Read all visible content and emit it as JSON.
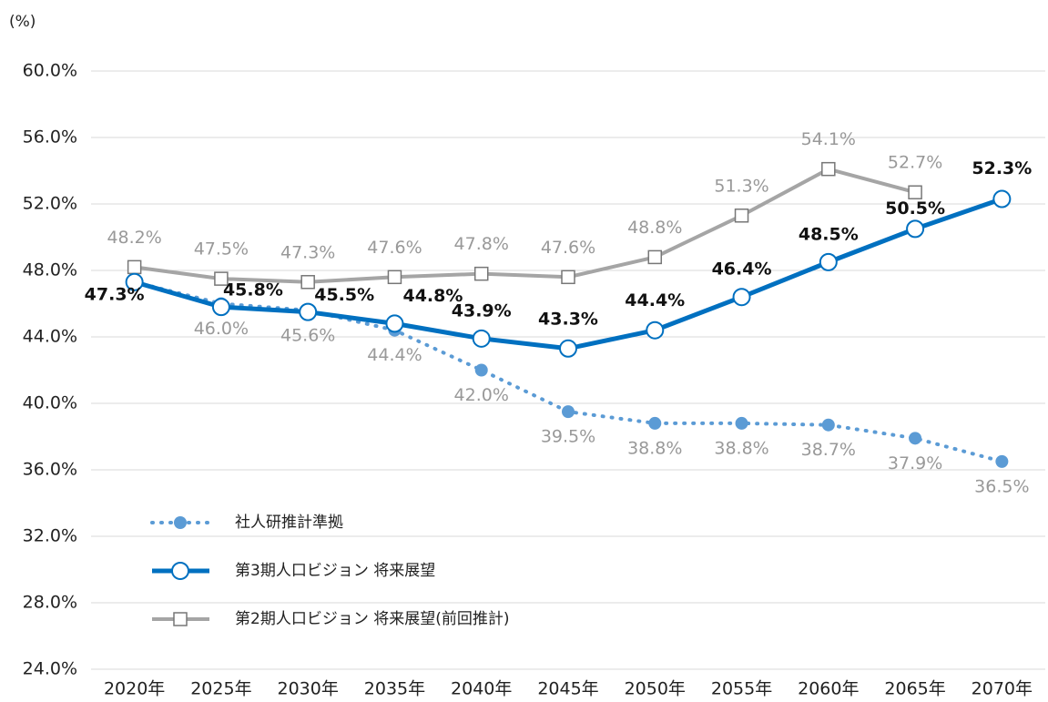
{
  "chart_data": {
    "type": "line",
    "y_axis_label": "(%)",
    "categories": [
      "2020年",
      "2025年",
      "2030年",
      "2035年",
      "2040年",
      "2045年",
      "2050年",
      "2055年",
      "2060年",
      "2065年",
      "2070年"
    ],
    "ylim": [
      24,
      60
    ],
    "yticks": [
      {
        "value": 24,
        "label": "24.0%"
      },
      {
        "value": 28,
        "label": "28.0%"
      },
      {
        "value": 32,
        "label": "32.0%"
      },
      {
        "value": 36,
        "label": "36.0%"
      },
      {
        "value": 40,
        "label": "40.0%"
      },
      {
        "value": 44,
        "label": "44.0%"
      },
      {
        "value": 48,
        "label": "48.0%"
      },
      {
        "value": 52,
        "label": "52.0%"
      },
      {
        "value": 56,
        "label": "56.0%"
      },
      {
        "value": 60,
        "label": "60.0%"
      }
    ],
    "grid": true,
    "series": [
      {
        "name": "社人研推計準拠",
        "color": "#5b9bd5",
        "line_style": "dotted",
        "marker": "dot",
        "values": [
          47.3,
          46.0,
          45.6,
          44.4,
          42.0,
          39.5,
          38.8,
          38.8,
          38.7,
          37.9,
          36.5
        ],
        "value_labels": [
          null,
          "46.0%",
          "45.6%",
          "44.4%",
          "42.0%",
          "39.5%",
          "38.8%",
          "38.8%",
          "38.7%",
          "37.9%",
          "36.5%"
        ]
      },
      {
        "name": "第3期人口ビジョン 将来展望",
        "color": "#0070c0",
        "line_style": "solid",
        "marker": "circle",
        "values": [
          47.3,
          45.8,
          45.5,
          44.8,
          43.9,
          43.3,
          44.4,
          46.4,
          48.5,
          50.5,
          52.3
        ],
        "value_labels": [
          "47.3%",
          "45.8%",
          "45.5%",
          "44.8%",
          "43.9%",
          "43.3%",
          "44.4%",
          "46.4%",
          "48.5%",
          "50.5%",
          "52.3%"
        ]
      },
      {
        "name": "第2期人口ビジョン 将来展望(前回推計)",
        "color": "#a5a5a5",
        "line_style": "solid",
        "marker": "square",
        "values": [
          48.2,
          47.5,
          47.3,
          47.6,
          47.8,
          47.6,
          48.8,
          51.3,
          54.1,
          52.7,
          null
        ],
        "value_labels": [
          "48.2%",
          "47.5%",
          "47.3%",
          "47.6%",
          "47.8%",
          "47.6%",
          "48.8%",
          "51.3%",
          "54.1%",
          "52.7%",
          null
        ]
      }
    ]
  }
}
